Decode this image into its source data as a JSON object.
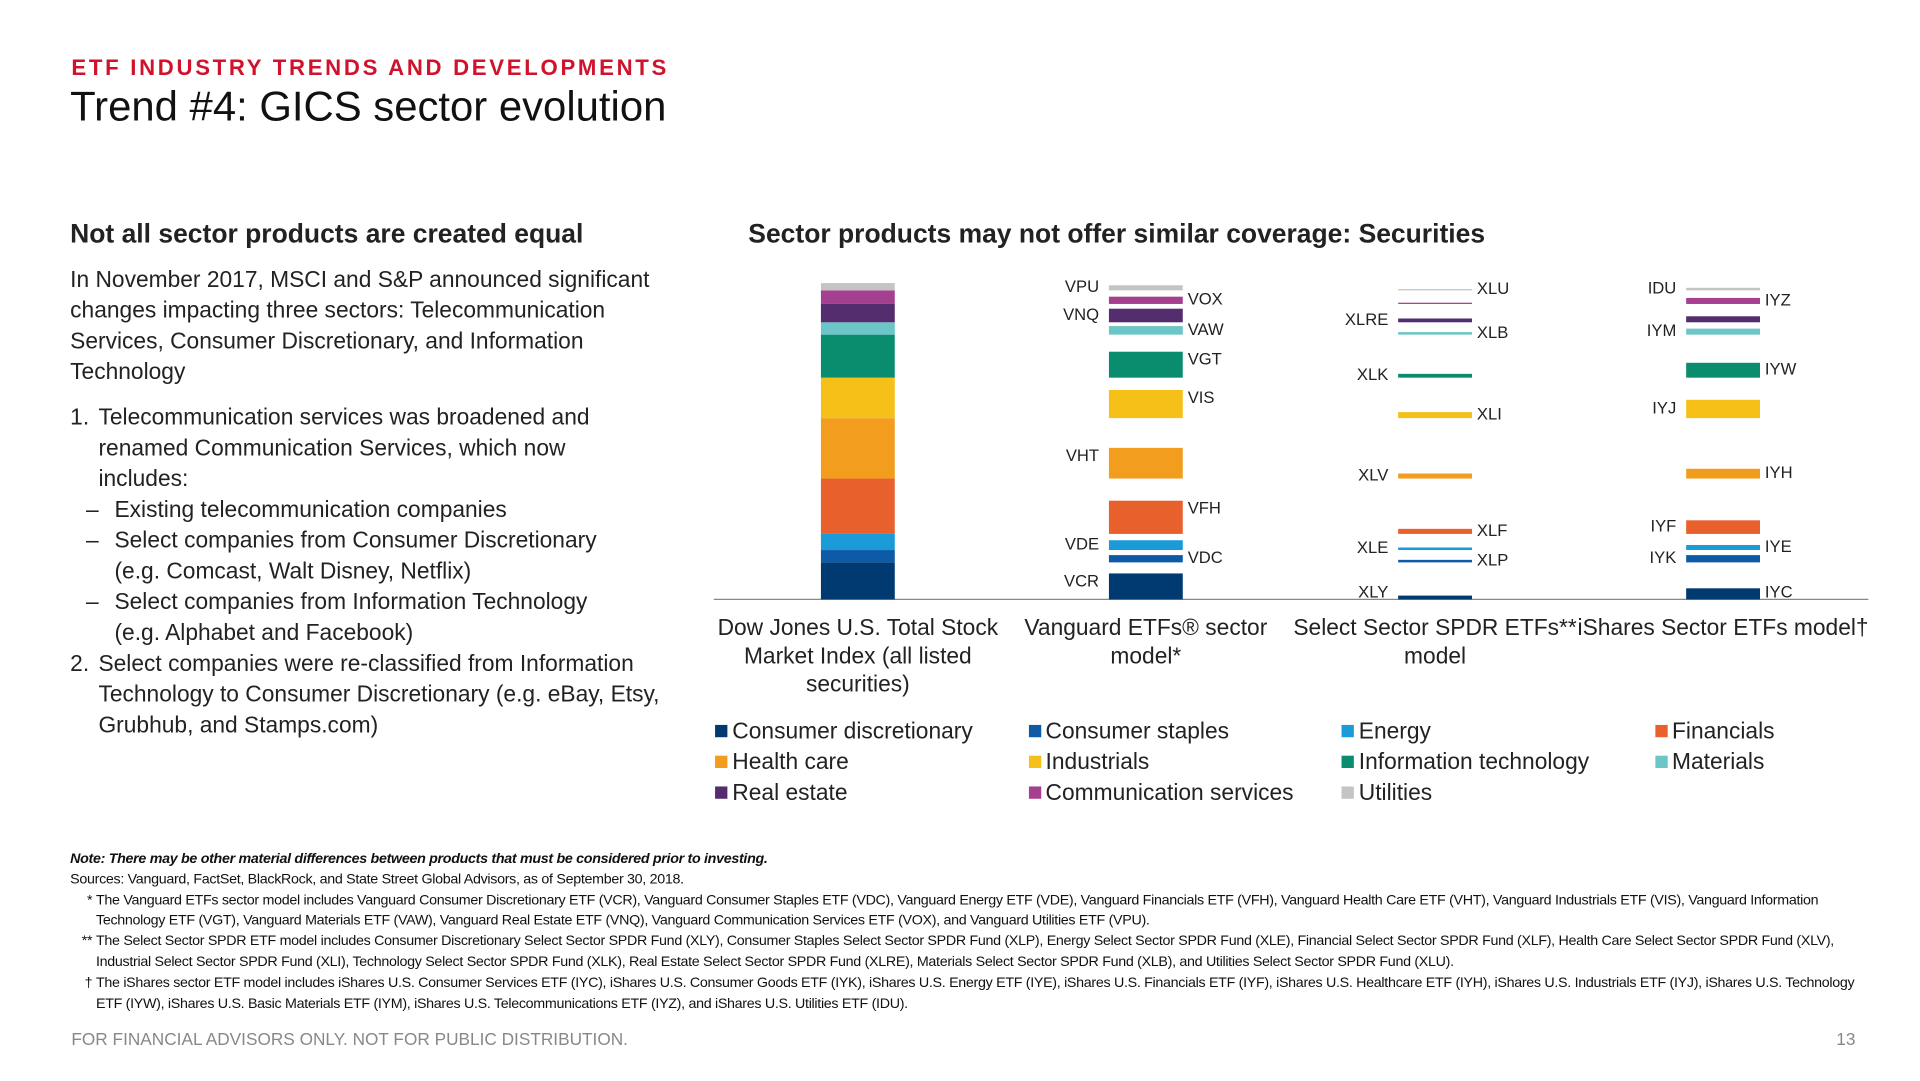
{
  "header": {
    "kicker": "ETF INDUSTRY TRENDS AND DEVELOPMENTS",
    "title": "Trend #4: GICS sector evolution"
  },
  "left": {
    "heading": "Not all sector products are created equal",
    "intro": "In November 2017, MSCI and S&P announced significant changes impacting three sectors: Telecommunication Services, Consumer Discretionary, and Information Technology",
    "list": [
      {
        "marker": "1.",
        "text": "Telecommunication services was broadened and renamed Communication Services, which now includes:",
        "sub": [
          "Existing telecommunication companies",
          "Select companies from Consumer Discretionary\n(e.g. Comcast, Walt Disney, Netflix)",
          "Select companies from Information Technology\n(e.g. Alphabet and Facebook)"
        ]
      },
      {
        "marker": "2.",
        "text": "Select companies were re-classified from Information Technology to Consumer Discretionary (e.g. eBay, Etsy, Grubhub, and Stamps.com)",
        "sub": []
      }
    ]
  },
  "chart_data": {
    "type": "bar",
    "stacked": true,
    "title": "Sector products may not offer similar coverage: Securities",
    "categories": [
      "Dow Jones U.S. Total Stock Market Index (all listed securities)",
      "Vanguard ETFs® sector model*",
      "Select Sector SPDR ETFs** model",
      "iShares Sector ETFs model†"
    ],
    "series": [
      {
        "name": "Consumer discretionary",
        "color": "#003a70",
        "values": [
          11.7,
          8.2,
          1.2,
          3.5
        ],
        "labels": [
          null,
          "VCR",
          "XLY",
          "IYC"
        ]
      },
      {
        "name": "Consumer staples",
        "color": "#0d5aa7",
        "values": [
          3.9,
          2.3,
          0.8,
          2.3
        ],
        "labels": [
          null,
          "VDC",
          "XLP",
          "IYK"
        ]
      },
      {
        "name": "Energy",
        "color": "#1a9ad6",
        "values": [
          5.1,
          3.1,
          0.8,
          1.6
        ],
        "labels": [
          null,
          "VDE",
          "XLE",
          "IYE"
        ]
      },
      {
        "name": "Financials",
        "color": "#e8602c",
        "values": [
          17.5,
          10.5,
          1.6,
          4.3
        ],
        "labels": [
          null,
          "VFH",
          "XLF",
          "IYF"
        ]
      },
      {
        "name": "Health care",
        "color": "#f29d1e",
        "values": [
          19.1,
          9.7,
          1.6,
          3.1
        ],
        "labels": [
          null,
          "VHT",
          "XLV",
          "IYH"
        ]
      },
      {
        "name": "Industrials",
        "color": "#f5c018",
        "values": [
          12.8,
          8.9,
          1.9,
          5.8
        ],
        "labels": [
          null,
          "VIS",
          "XLI",
          "IYJ"
        ]
      },
      {
        "name": "Information technology",
        "color": "#0a8c6e",
        "values": [
          13.6,
          8.2,
          1.2,
          4.7
        ],
        "labels": [
          null,
          "VGT",
          "XLK",
          "IYW"
        ]
      },
      {
        "name": "Materials",
        "color": "#6cc5c6",
        "values": [
          3.9,
          2.7,
          0.8,
          1.9
        ],
        "labels": [
          null,
          "VAW",
          "XLB",
          "IYM"
        ]
      },
      {
        "name": "Real estate",
        "color": "#542d6e",
        "values": [
          5.8,
          4.3,
          1.2,
          1.9
        ],
        "labels": [
          null,
          "VNQ",
          "XLRE",
          null
        ]
      },
      {
        "name": "Communication services",
        "color": "#a4408f",
        "values": [
          4.3,
          2.3,
          0.4,
          1.9
        ],
        "labels": [
          null,
          "VOX",
          null,
          "IYZ"
        ]
      },
      {
        "name": "Utilities",
        "color": "#c4c4c4",
        "values": [
          2.3,
          1.6,
          0.4,
          0.8
        ],
        "labels": [
          null,
          "VPU",
          "XLU",
          "IDU"
        ]
      }
    ]
  },
  "notes": {
    "note": "Note: There may be other material differences between products that must be considered prior to investing.",
    "sources": "Sources: Vanguard, FactSet, BlackRock, and State Street Global Advisors, as of September 30, 2018.",
    "footnotes": [
      {
        "marker": "*",
        "text": "The Vanguard ETFs sector model includes Vanguard Consumer Discretionary ETF (VCR), Vanguard Consumer Staples ETF (VDC), Vanguard Energy ETF (VDE), Vanguard Financials ETF (VFH), Vanguard Health Care ETF (VHT), Vanguard Industrials ETF (VIS), Vanguard Information Technology ETF (VGT), Vanguard Materials ETF (VAW), Vanguard Real Estate ETF (VNQ), Vanguard Communication Services ETF (VOX), and Vanguard Utilities ETF (VPU)."
      },
      {
        "marker": "**",
        "text": "The Select Sector SPDR ETF model includes Consumer Discretionary Select Sector SPDR Fund (XLY), Consumer Staples Select Sector SPDR Fund (XLP), Energy Select Sector SPDR Fund (XLE), Financial Select Sector SPDR Fund (XLF), Health Care Select Sector SPDR Fund (XLV), Industrial Select Sector SPDR Fund (XLI), Technology Select Sector SPDR Fund (XLK), Real Estate Select Sector SPDR Fund (XLRE), Materials Select Sector SPDR Fund (XLB), and Utilities Select Sector SPDR Fund (XLU)."
      },
      {
        "marker": "†",
        "text": "The iShares sector ETF model includes iShares U.S. Consumer Services ETF (IYC), iShares U.S. Consumer Goods ETF (IYK), iShares U.S. Energy ETF (IYE), iShares U.S. Financials ETF (IYF), iShares U.S. Healthcare ETF (IYH), iShares U.S. Industrials ETF (IYJ), iShares U.S. Technology ETF (IYW), iShares U.S. Basic Materials ETF (IYM), iShares U.S. Telecommunications ETF (IYZ), and iShares U.S. Utilities ETF (IDU)."
      }
    ]
  },
  "footer": {
    "disclaimer": "FOR FINANCIAL ADVISORS ONLY. NOT FOR PUBLIC DISTRIBUTION.",
    "page": 13
  }
}
